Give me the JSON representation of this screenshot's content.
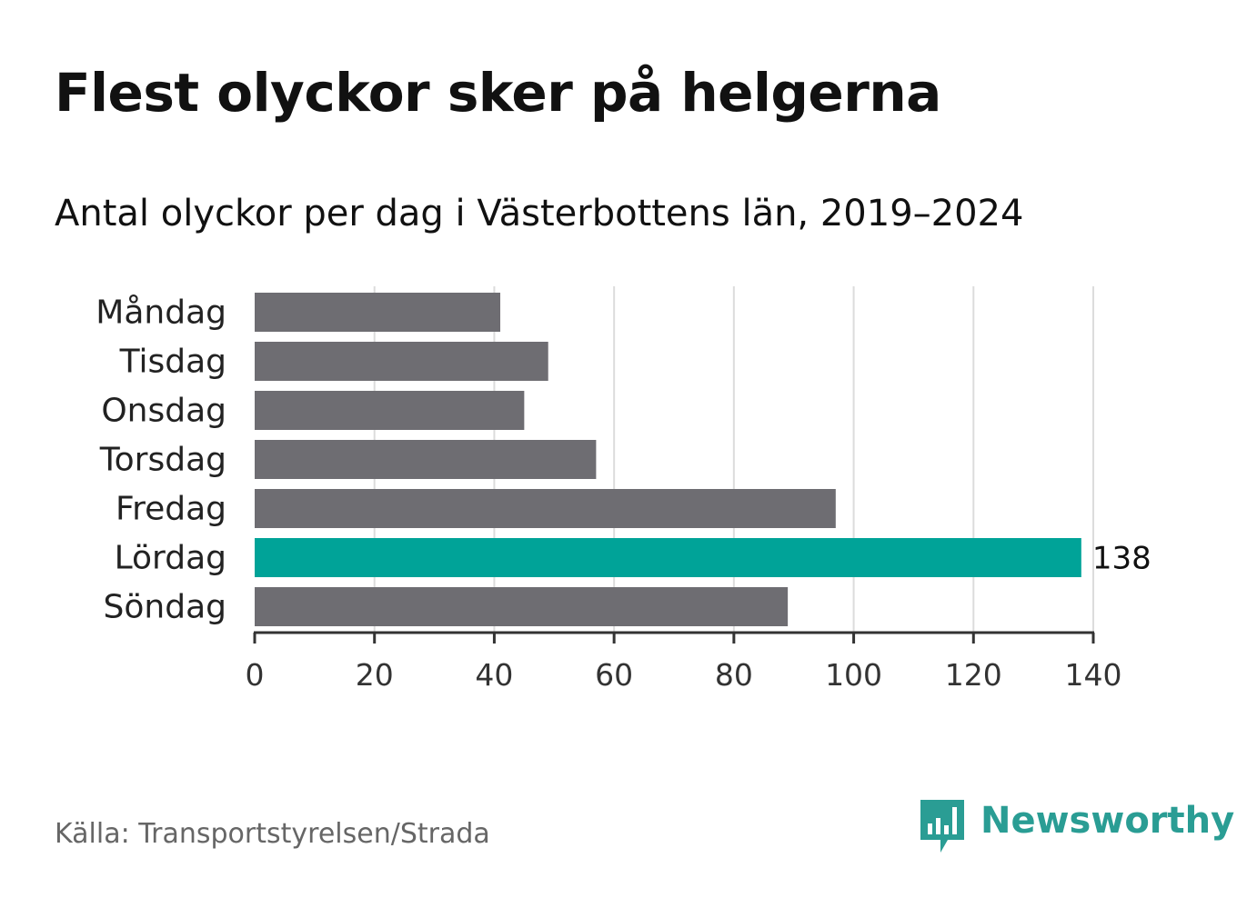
{
  "title": "Flest olyckor sker på helgerna",
  "subtitle": "Antal olyckor per dag i Västerbottens län, 2019–2024",
  "source": "Källa: Transportstyrelsen/Strada",
  "brand": {
    "name": "Newsworthy",
    "icon": "newsworthy-logo-icon"
  },
  "colors": {
    "bar": "#6e6d72",
    "highlight": "#00a398",
    "grid": "#dcdcdc",
    "axis": "#333333",
    "brand": "#2a9d94"
  },
  "chart_data": {
    "type": "bar",
    "orientation": "horizontal",
    "categories": [
      "Måndag",
      "Tisdag",
      "Onsdag",
      "Torsdag",
      "Fredag",
      "Lördag",
      "Söndag"
    ],
    "values": [
      41,
      49,
      45,
      57,
      97,
      138,
      89
    ],
    "highlight_index": 5,
    "data_labels": [
      {
        "category": "Lördag",
        "label": "138"
      }
    ],
    "xlim": [
      0,
      140
    ],
    "xticks": [
      0,
      20,
      40,
      60,
      80,
      100,
      120,
      140
    ],
    "grid": true,
    "title": "Flest olyckor sker på helgerna",
    "subtitle": "Antal olyckor per dag i Västerbottens län, 2019–2024",
    "xlabel": "",
    "ylabel": ""
  }
}
